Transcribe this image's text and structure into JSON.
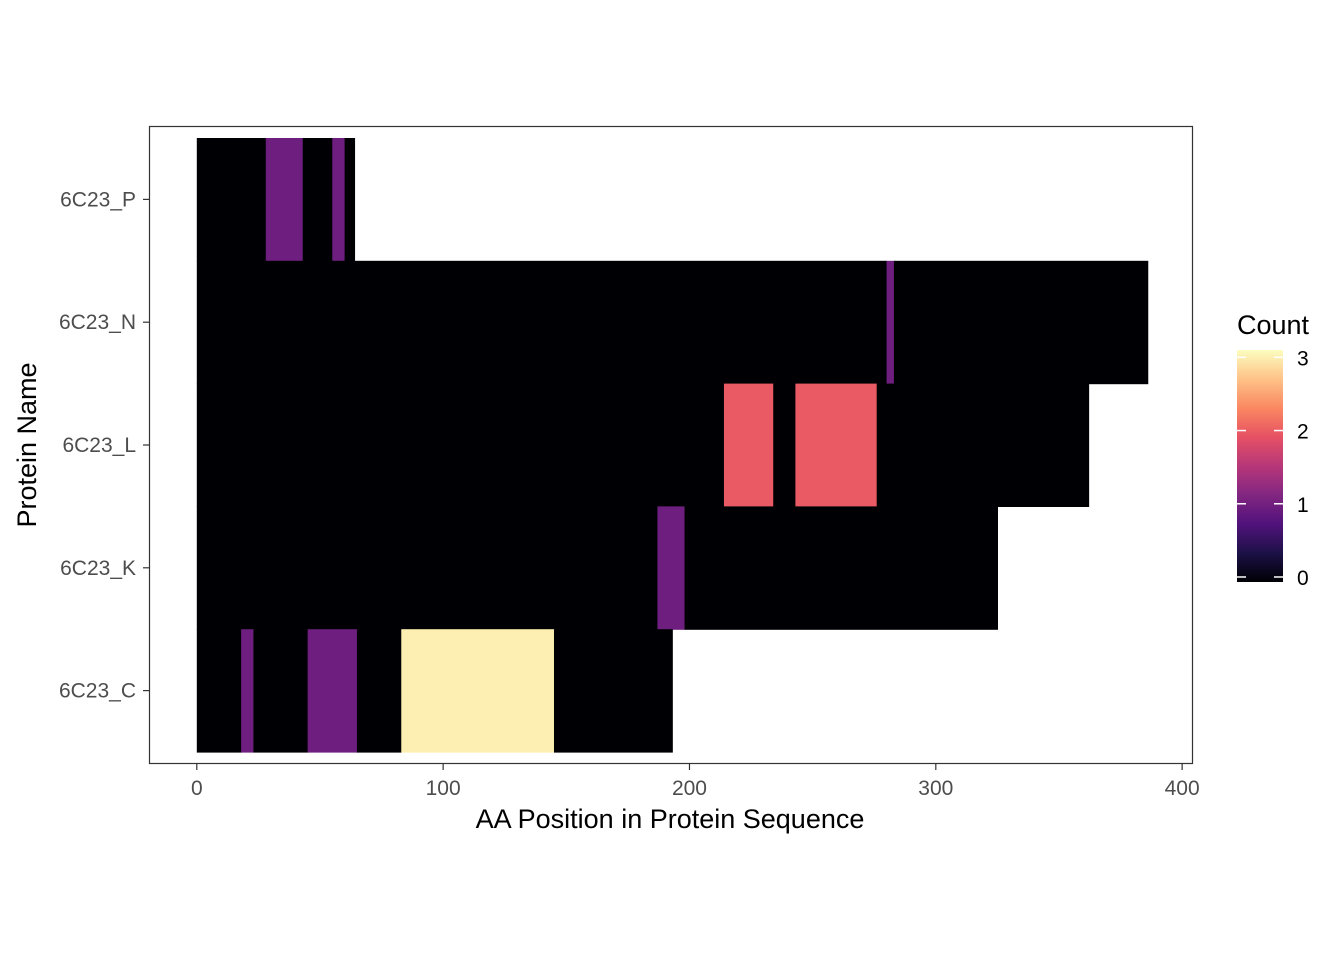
{
  "chart_data": {
    "type": "heatmap",
    "title": "",
    "xlabel": "AA Position in Protein Sequence",
    "ylabel": "Protein Name",
    "xlim": [
      -19,
      404
    ],
    "x_ticks": [
      0,
      100,
      200,
      300,
      400
    ],
    "categories": [
      "6C23_C",
      "6C23_K",
      "6C23_L",
      "6C23_N",
      "6C23_P"
    ],
    "grid": false,
    "legend": {
      "title": "Count",
      "position": "right",
      "ticks": [
        0,
        1,
        2,
        3
      ],
      "range": [
        0,
        3.1
      ],
      "palette": [
        "#000004",
        "#1d1147",
        "#51127c",
        "#822681",
        "#b73779",
        "#e65164",
        "#fb8861",
        "#fec287",
        "#fcfdbf"
      ]
    },
    "series": [
      {
        "protein": "6C23_P",
        "segments": [
          {
            "start": 0,
            "end": 28,
            "count": 0
          },
          {
            "start": 28,
            "end": 43,
            "count": 1
          },
          {
            "start": 43,
            "end": 55,
            "count": 0
          },
          {
            "start": 55,
            "end": 60,
            "count": 1
          },
          {
            "start": 60,
            "end": 64,
            "count": 0
          }
        ]
      },
      {
        "protein": "6C23_N",
        "segments": [
          {
            "start": 0,
            "end": 280,
            "count": 0
          },
          {
            "start": 280,
            "end": 283,
            "count": 1
          },
          {
            "start": 283,
            "end": 386,
            "count": 0
          }
        ]
      },
      {
        "protein": "6C23_L",
        "segments": [
          {
            "start": 0,
            "end": 214,
            "count": 0
          },
          {
            "start": 214,
            "end": 234,
            "count": 2
          },
          {
            "start": 234,
            "end": 243,
            "count": 0
          },
          {
            "start": 243,
            "end": 276,
            "count": 2
          },
          {
            "start": 276,
            "end": 362,
            "count": 0
          }
        ]
      },
      {
        "protein": "6C23_K",
        "segments": [
          {
            "start": 0,
            "end": 187,
            "count": 0
          },
          {
            "start": 187,
            "end": 198,
            "count": 1
          },
          {
            "start": 198,
            "end": 325,
            "count": 0
          }
        ]
      },
      {
        "protein": "6C23_C",
        "segments": [
          {
            "start": 0,
            "end": 18,
            "count": 0
          },
          {
            "start": 18,
            "end": 23,
            "count": 1
          },
          {
            "start": 23,
            "end": 45,
            "count": 0
          },
          {
            "start": 45,
            "end": 65,
            "count": 1
          },
          {
            "start": 65,
            "end": 83,
            "count": 0
          },
          {
            "start": 83,
            "end": 145,
            "count": 3
          },
          {
            "start": 145,
            "end": 193,
            "count": 0
          }
        ]
      }
    ]
  }
}
